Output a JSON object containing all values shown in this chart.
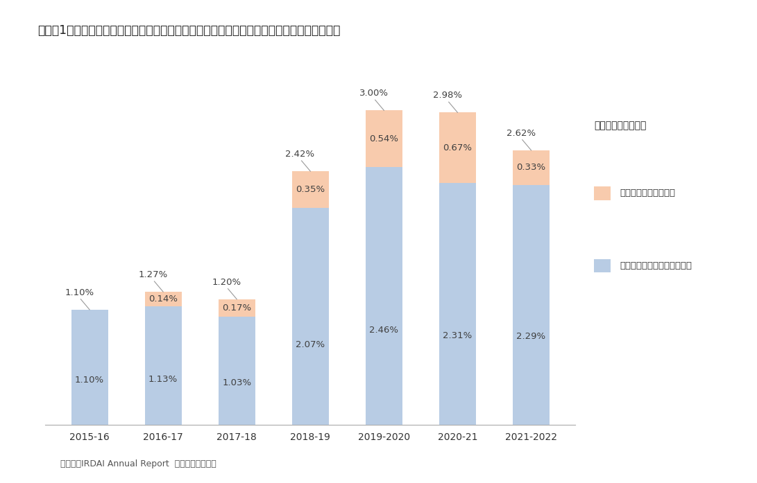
{
  "categories": [
    "2015-16",
    "2016-17",
    "2017-18",
    "2018-19",
    "2019-2020",
    "2020-21",
    "2021-2022"
  ],
  "direct_values": [
    1.1,
    1.13,
    1.03,
    2.07,
    2.46,
    2.31,
    2.29
  ],
  "aggregator_values": [
    0.0,
    0.14,
    0.17,
    0.35,
    0.54,
    0.67,
    0.33
  ],
  "total_values": [
    1.1,
    1.27,
    1.2,
    2.42,
    3.0,
    2.98,
    2.62
  ],
  "direct_color": "#b8cce4",
  "aggregator_color": "#f8cbad",
  "background_color": "#ffffff",
  "title": "グラフ1　個人保険販売におけるオンライン販売の販売シェアの推移（新契約保険料ベース）",
  "legend_total": "オンライン販売合計",
  "legend_aggregator": "ウェブアグリケータ－",
  "legend_direct": "オンライン・ダイレクト販売",
  "footnote": "（資料）IRDAI Annual Report  各会計年度版より",
  "ylim": [
    0,
    3.5
  ],
  "bar_width": 0.5,
  "label_color": "#404040",
  "line_color": "#999999"
}
